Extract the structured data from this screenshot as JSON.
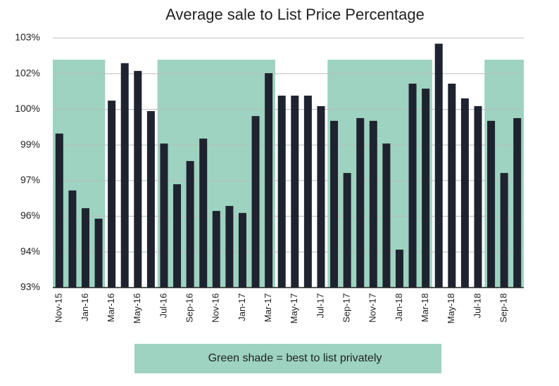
{
  "chart_data": {
    "type": "bar",
    "title": "Average sale to List Price Percentage",
    "annotation": "Green shade = best to list privately",
    "categories": [
      "Nov-15",
      null,
      "Jan-16",
      null,
      "Mar-16",
      null,
      "May-16",
      null,
      "Jul-16",
      null,
      "Sep-16",
      null,
      "Nov-16",
      null,
      "Jan-17",
      null,
      "Mar-17",
      null,
      "May-17",
      null,
      "Jul-17",
      null,
      "Sep-17",
      null,
      "Nov-17",
      null,
      "Jan-18",
      null,
      "Mar-18",
      null,
      "May-18",
      null,
      "Jul-18",
      null,
      "Sep-18",
      null
    ],
    "values": [
      99.17,
      96.89,
      96.18,
      95.76,
      100.49,
      101.99,
      101.68,
      100.07,
      98.77,
      97.14,
      98.07,
      98.97,
      96.07,
      96.27,
      95.99,
      99.87,
      101.59,
      100.69,
      100.69,
      100.69,
      100.27,
      99.68,
      97.59,
      99.79,
      99.68,
      98.77,
      94.52,
      101.17,
      100.97,
      102.77,
      101.17,
      100.58,
      100.27,
      99.68,
      97.59,
      99.79
    ],
    "color": "#1f2330",
    "shade_color": "#9dd3c0",
    "shade_top": 102.13,
    "shaded": [
      {
        "start": 0,
        "end": 3
      },
      {
        "start": 8,
        "end": 16
      },
      {
        "start": 21,
        "end": 28
      },
      {
        "start": 33,
        "end": 35
      }
    ],
    "ylim": [
      93,
      103
    ],
    "yticks": [
      {
        "value": 93,
        "label": "93%"
      },
      {
        "value": 94.43,
        "label": "94%"
      },
      {
        "value": 95.86,
        "label": "96%"
      },
      {
        "value": 97.29,
        "label": "97%"
      },
      {
        "value": 98.71,
        "label": "99%"
      },
      {
        "value": 100.14,
        "label": "100%"
      },
      {
        "value": 101.57,
        "label": "102%"
      },
      {
        "value": 103,
        "label": "103%"
      }
    ],
    "grid": true
  }
}
